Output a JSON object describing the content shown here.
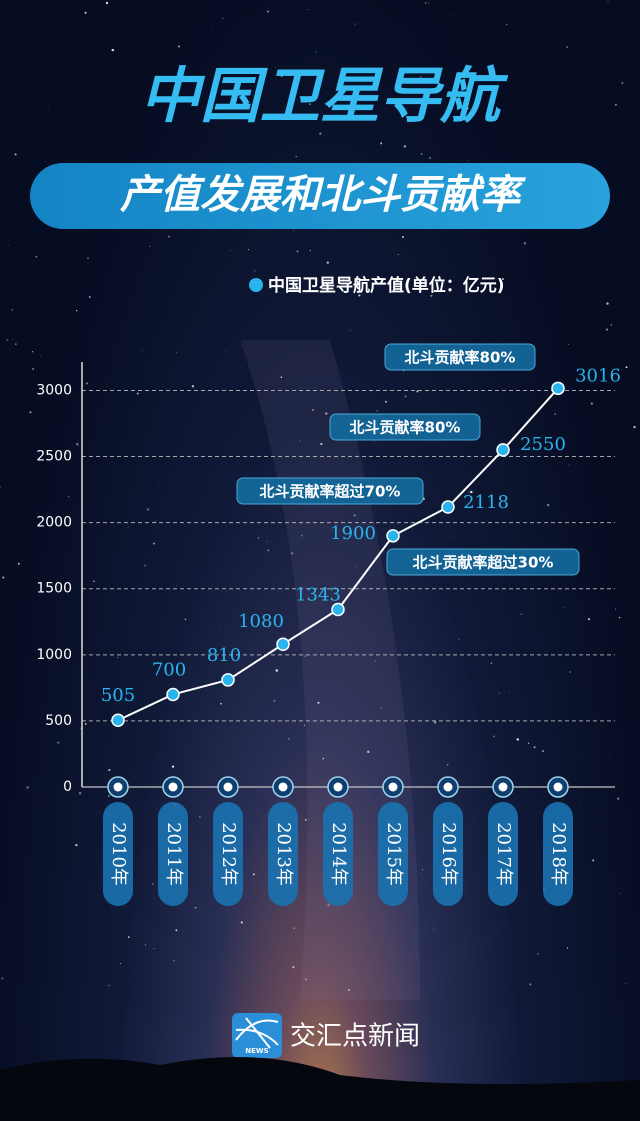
{
  "chart_data": {
    "type": "line",
    "title": "中国卫星导航",
    "subtitle": "产值发展和北斗贡献率",
    "series": [
      {
        "name": "中国卫星导航产值(单位：亿元)",
        "color": "#2ab4ee",
        "values": [
          505,
          700,
          810,
          1080,
          1343,
          1900,
          2118,
          2550,
          3016
        ]
      }
    ],
    "categories": [
      "2010年",
      "2011年",
      "2012年",
      "2013年",
      "2014年",
      "2015年",
      "2016年",
      "2017年",
      "2018年"
    ],
    "ylim": [
      0,
      3200
    ],
    "yticks": [
      0,
      500,
      1000,
      1500,
      2000,
      2500,
      3000
    ],
    "grid": true,
    "annotations": [
      "北斗贡献率80%",
      "北斗贡献率80%",
      "北斗贡献率超过70%",
      "北斗贡献率超过30%"
    ]
  },
  "footer": {
    "logo_icon": "NEWS",
    "logo_text": "交汇点新闻"
  }
}
